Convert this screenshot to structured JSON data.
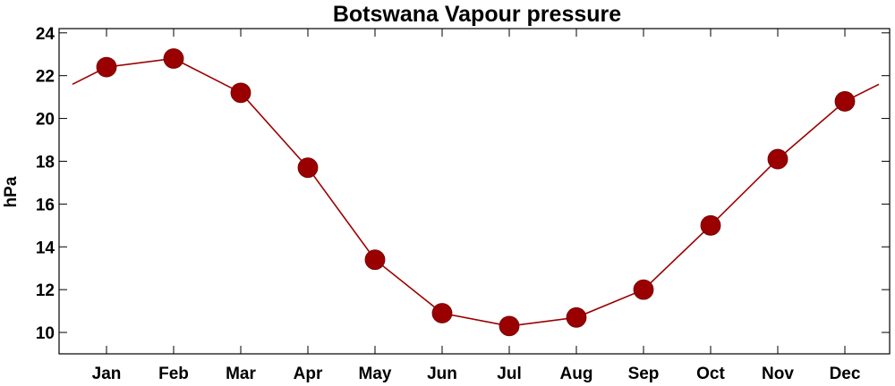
{
  "chart_data": {
    "type": "line",
    "title": "Botswana Vapour pressure",
    "xlabel": "",
    "ylabel": "hPa",
    "categories": [
      "Jan",
      "Feb",
      "Mar",
      "Apr",
      "May",
      "Jun",
      "Jul",
      "Aug",
      "Sep",
      "Oct",
      "Nov",
      "Dec"
    ],
    "series": [
      {
        "values": [
          22.4,
          22.8,
          21.2,
          17.7,
          13.4,
          10.9,
          10.3,
          10.7,
          12.0,
          15.0,
          18.1,
          20.8
        ]
      }
    ],
    "ylim": [
      9,
      24.2
    ],
    "yticks": [
      10,
      12,
      14,
      16,
      18,
      20,
      22,
      24
    ],
    "ytick_labels": [
      "10",
      "12",
      "14",
      "16",
      "18",
      "20",
      "22",
      "24"
    ],
    "grid": false,
    "legend": "none",
    "colors": {
      "series": "#9b0000",
      "marker": "#9b0000",
      "axis": "#000000"
    }
  }
}
